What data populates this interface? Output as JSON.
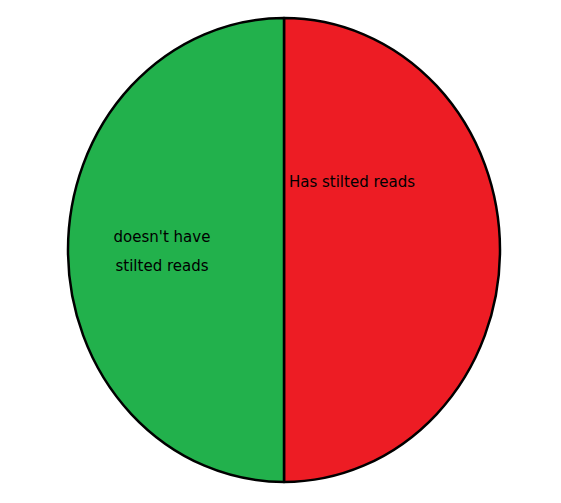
{
  "chart_data": {
    "type": "pie",
    "categories": [
      "Has stilted reads",
      "doesn't have stilted reads"
    ],
    "values": [
      50,
      50
    ],
    "colors": [
      "#ed1c24",
      "#22b14c"
    ]
  }
}
